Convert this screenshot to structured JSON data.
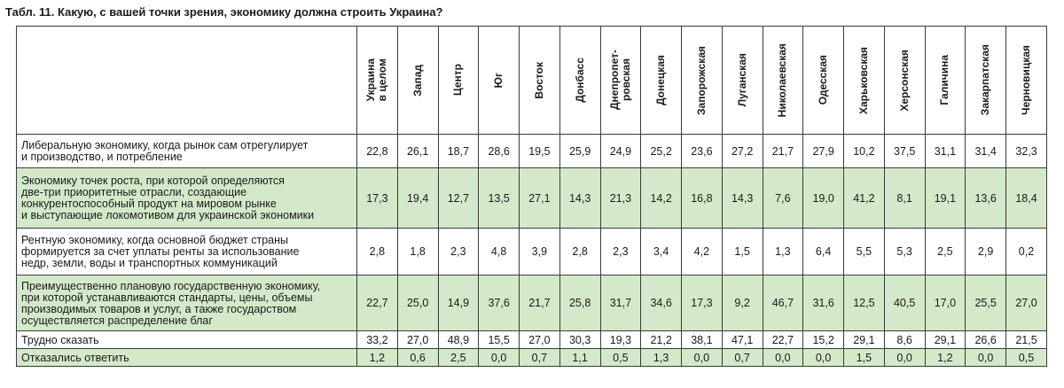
{
  "title": "Табл. 11. Какую, с вашей точки зрения, экономику должна строить Украина?",
  "colors": {
    "green_row": "#d4e9c9",
    "white_row": "#ffffff",
    "border": "#3a3a3a"
  },
  "regions": [
    "Украина\nв целом",
    "Запад",
    "Центр",
    "Юг",
    "Восток",
    "Донбасс",
    "Днепропет-\nровская",
    "Донецкая",
    "Запорожская",
    "Луганская",
    "Николаевская",
    "Одесская",
    "Харьковская",
    "Херсонская",
    "Галичина",
    "Закарпатская",
    "Черновицкая"
  ],
  "rows": [
    {
      "label": "Либеральную экономику, когда рынок сам отрегулирует\nи производство, и потребление",
      "values": [
        "22,8",
        "26,1",
        "18,7",
        "28,6",
        "19,5",
        "25,9",
        "24,9",
        "25,2",
        "23,6",
        "27,2",
        "21,7",
        "27,9",
        "10,2",
        "37,5",
        "31,1",
        "31,4",
        "32,3"
      ]
    },
    {
      "label": "Экономику точек роста, при которой определяются\nдве-три приоритетные отрасли, создающие\nконкурентоспособный продукт на мировом рынке\nи выступающие локомотивом для украинской экономики",
      "values": [
        "17,3",
        "19,4",
        "12,7",
        "13,5",
        "27,1",
        "14,3",
        "21,3",
        "14,2",
        "16,8",
        "14,3",
        "7,6",
        "19,0",
        "41,2",
        "8,1",
        "19,1",
        "13,6",
        "18,4"
      ]
    },
    {
      "label": "Рентную экономику, когда основной бюджет страны\nформируется за счет уплаты ренты за использование\nнедр, земли, воды и транспортных коммуникаций",
      "values": [
        "2,8",
        "1,8",
        "2,3",
        "4,8",
        "3,9",
        "2,8",
        "2,3",
        "3,4",
        "4,2",
        "1,5",
        "1,3",
        "6,4",
        "5,5",
        "5,3",
        "2,5",
        "2,9",
        "0,2"
      ]
    },
    {
      "label": "Преимущественно плановую государственную экономику,\nпри которой устанавливаются стандарты, цены, объемы\nпроизводимых товаров и услуг, а также государством\nосуществляется распределение благ",
      "values": [
        "22,7",
        "25,0",
        "14,9",
        "37,6",
        "21,7",
        "25,8",
        "31,7",
        "34,6",
        "17,3",
        "9,2",
        "46,7",
        "31,6",
        "12,5",
        "40,5",
        "17,0",
        "25,5",
        "27,0"
      ]
    },
    {
      "label": "Трудно сказать",
      "values": [
        "33,2",
        "27,0",
        "48,9",
        "15,5",
        "27,0",
        "30,3",
        "19,3",
        "21,2",
        "38,1",
        "47,1",
        "22,7",
        "15,2",
        "29,1",
        "8,6",
        "29,1",
        "26,6",
        "21,5"
      ]
    },
    {
      "label": "Отказались ответить",
      "values": [
        "1,2",
        "0,6",
        "2,5",
        "0,0",
        "0,7",
        "1,1",
        "0,5",
        "1,3",
        "0,0",
        "0,7",
        "0,0",
        "0,0",
        "1,5",
        "0,0",
        "1,2",
        "0,0",
        "0,5"
      ]
    }
  ]
}
